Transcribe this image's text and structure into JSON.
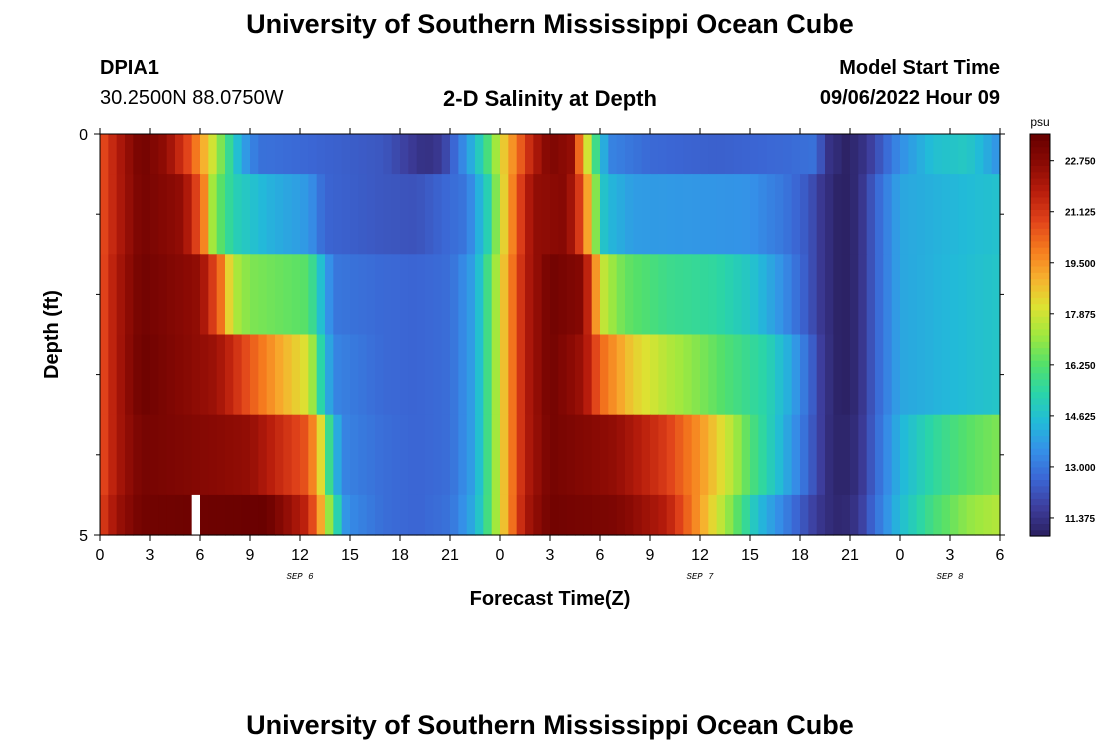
{
  "header": {
    "title": "University of Southern Mississippi Ocean Cube",
    "station": "DPIA1",
    "coords": "30.2500N  88.0750W",
    "plot_title": "2-D Salinity at Depth",
    "start_label": "Model Start Time",
    "start_value": "09/06/2022 Hour 09"
  },
  "footer": {
    "title": "University of Southern Mississippi Ocean Cube"
  },
  "chart_data": {
    "type": "heatmap",
    "title": "2-D Salinity at Depth",
    "xlabel": "Forecast Time(Z)",
    "ylabel": "Depth (ft)",
    "x_tick_labels": [
      "0",
      "3",
      "6",
      "9",
      "12",
      "15",
      "18",
      "21",
      "0",
      "3",
      "6",
      "9",
      "12",
      "15",
      "18",
      "21",
      "0",
      "3",
      "6"
    ],
    "x_tick_hours": [
      0,
      3,
      6,
      9,
      12,
      15,
      18,
      21,
      24,
      27,
      30,
      33,
      36,
      39,
      42,
      45,
      48,
      51,
      54
    ],
    "x_date_labels": [
      {
        "label": "SEP 6",
        "hour": 12
      },
      {
        "label": "SEP 7",
        "hour": 36
      },
      {
        "label": "SEP 8",
        "hour": 51
      }
    ],
    "xlim": [
      0,
      54
    ],
    "y_tick_labels": [
      "0",
      "5"
    ],
    "ylim": [
      0,
      5
    ],
    "y_minor_ticks": [
      1,
      2,
      3,
      4
    ],
    "colorbar": {
      "unit": "psu",
      "min": 10.8,
      "max": 23.6,
      "tick_labels": [
        "22.750",
        "21.125",
        "19.500",
        "17.875",
        "16.250",
        "14.625",
        "13.000",
        "11.375"
      ],
      "tick_values": [
        22.75,
        21.125,
        19.5,
        17.875,
        16.25,
        14.625,
        13.0,
        11.375
      ],
      "colors": [
        "#2a1f5e",
        "#3d3d9c",
        "#3b66d4",
        "#3590e8",
        "#22bbd8",
        "#2ad5a8",
        "#54e06a",
        "#a0e83e",
        "#dde232",
        "#f7b02e",
        "#f57a1e",
        "#e0421a",
        "#b81d0c",
        "#8a0a04",
        "#660000"
      ]
    },
    "depth_layers": [
      {
        "depth_range": [
          0,
          0.5
        ],
        "keyframes": [
          [
            0,
            20.5
          ],
          [
            1,
            21.8
          ],
          [
            2.5,
            23.3
          ],
          [
            4,
            22.5
          ],
          [
            5.5,
            20.5
          ],
          [
            6.5,
            18.5
          ],
          [
            7.5,
            16.2
          ],
          [
            8.5,
            14.0
          ],
          [
            9.5,
            12.9
          ],
          [
            13,
            12.6
          ],
          [
            17,
            12.3
          ],
          [
            19.5,
            11.3
          ],
          [
            20.5,
            11.6
          ],
          [
            21.5,
            13.0
          ],
          [
            22.5,
            14.5
          ],
          [
            23.5,
            16.5
          ],
          [
            24.2,
            18.5
          ],
          [
            25,
            20.0
          ],
          [
            26,
            21.8
          ],
          [
            27,
            23.0
          ],
          [
            28.3,
            22.5
          ],
          [
            29,
            19.0
          ],
          [
            29.7,
            16.0
          ],
          [
            30.5,
            13.3
          ],
          [
            33,
            12.7
          ],
          [
            37,
            12.5
          ],
          [
            41,
            12.7
          ],
          [
            43,
            12.9
          ],
          [
            43.5,
            11.5
          ],
          [
            44.8,
            10.9
          ],
          [
            45.5,
            11.2
          ],
          [
            46,
            11.5
          ],
          [
            47,
            12.5
          ],
          [
            48,
            13.5
          ],
          [
            50,
            14.6
          ],
          [
            52,
            14.9
          ],
          [
            53,
            14.3
          ],
          [
            54,
            13.5
          ]
        ]
      },
      {
        "depth_range": [
          0.5,
          1.5
        ],
        "keyframes": [
          [
            0,
            20.5
          ],
          [
            1,
            21.8
          ],
          [
            2.5,
            23.2
          ],
          [
            5,
            22.5
          ],
          [
            6.2,
            20.0
          ],
          [
            6.8,
            17.0
          ],
          [
            8,
            15.2
          ],
          [
            10,
            14.3
          ],
          [
            12.5,
            13.7
          ],
          [
            13.5,
            12.6
          ],
          [
            17,
            12.3
          ],
          [
            19,
            12.2
          ],
          [
            22,
            13.0
          ],
          [
            23.2,
            15.0
          ],
          [
            24.2,
            18.3
          ],
          [
            25,
            20.5
          ],
          [
            26,
            22.5
          ],
          [
            28,
            22.8
          ],
          [
            29,
            20.5
          ],
          [
            29.6,
            17.5
          ],
          [
            30.3,
            14.5
          ],
          [
            32,
            13.8
          ],
          [
            39,
            13.6
          ],
          [
            41,
            13.0
          ],
          [
            42.5,
            12.3
          ],
          [
            43.3,
            11.5
          ],
          [
            44.5,
            10.8
          ],
          [
            45.5,
            11.2
          ],
          [
            46.5,
            12.5
          ],
          [
            48,
            14.0
          ],
          [
            54,
            14.7
          ]
        ]
      },
      {
        "depth_range": [
          1.5,
          2.5
        ],
        "keyframes": [
          [
            0,
            20.5
          ],
          [
            1,
            22.0
          ],
          [
            2.5,
            23.3
          ],
          [
            6,
            22.5
          ],
          [
            7.3,
            20.0
          ],
          [
            8,
            17.5
          ],
          [
            9,
            16.8
          ],
          [
            12.5,
            16.3
          ],
          [
            13.3,
            14.5
          ],
          [
            14,
            13.0
          ],
          [
            17,
            12.7
          ],
          [
            19,
            12.6
          ],
          [
            21,
            12.8
          ],
          [
            22.5,
            14.0
          ],
          [
            23.5,
            16.5
          ],
          [
            24.5,
            19.5
          ],
          [
            25.5,
            21.8
          ],
          [
            27,
            23.3
          ],
          [
            29,
            22.8
          ],
          [
            29.6,
            20.0
          ],
          [
            30.3,
            17.5
          ],
          [
            31.5,
            16.5
          ],
          [
            34,
            15.8
          ],
          [
            37,
            15.5
          ],
          [
            39,
            14.8
          ],
          [
            41,
            13.5
          ],
          [
            42.5,
            12.3
          ],
          [
            43.3,
            11.5
          ],
          [
            44.5,
            10.8
          ],
          [
            45.5,
            11.2
          ],
          [
            46.5,
            12.5
          ],
          [
            48,
            14.0
          ],
          [
            54,
            14.8
          ]
        ]
      },
      {
        "depth_range": [
          2.5,
          3.5
        ],
        "keyframes": [
          [
            0,
            20.5
          ],
          [
            1,
            22.0
          ],
          [
            2.5,
            23.4
          ],
          [
            7,
            22.3
          ],
          [
            9,
            20.5
          ],
          [
            11,
            19.0
          ],
          [
            12.5,
            18.0
          ],
          [
            13.3,
            15.2
          ],
          [
            14,
            13.3
          ],
          [
            17,
            12.7
          ],
          [
            19,
            12.6
          ],
          [
            21,
            12.8
          ],
          [
            22.5,
            14.0
          ],
          [
            23.5,
            16.5
          ],
          [
            24.5,
            19.5
          ],
          [
            25.5,
            21.8
          ],
          [
            27,
            23.3
          ],
          [
            29,
            22.3
          ],
          [
            30,
            20.3
          ],
          [
            32,
            18.5
          ],
          [
            34,
            17.5
          ],
          [
            36,
            16.8
          ],
          [
            38,
            16.0
          ],
          [
            40,
            15.3
          ],
          [
            41.5,
            14.0
          ],
          [
            42.7,
            12.5
          ],
          [
            43.4,
            11.5
          ],
          [
            44.5,
            10.8
          ],
          [
            45.5,
            11.2
          ],
          [
            46.5,
            12.5
          ],
          [
            48,
            14.0
          ],
          [
            54,
            14.8
          ]
        ]
      },
      {
        "depth_range": [
          3.5,
          4.5
        ],
        "keyframes": [
          [
            0,
            20.5
          ],
          [
            1,
            22.0
          ],
          [
            2.5,
            23.2
          ],
          [
            9,
            22.5
          ],
          [
            11,
            21.3
          ],
          [
            12.5,
            20.5
          ],
          [
            13.2,
            18.5
          ],
          [
            13.8,
            15.5
          ],
          [
            14.5,
            13.3
          ],
          [
            17,
            12.8
          ],
          [
            19,
            12.6
          ],
          [
            21,
            12.8
          ],
          [
            22.5,
            14.0
          ],
          [
            23.5,
            16.5
          ],
          [
            24.5,
            19.5
          ],
          [
            25.5,
            21.8
          ],
          [
            27,
            23.2
          ],
          [
            31,
            22.5
          ],
          [
            34,
            21.0
          ],
          [
            36,
            19.5
          ],
          [
            37.5,
            18.0
          ],
          [
            39,
            16.2
          ],
          [
            40.5,
            14.8
          ],
          [
            42,
            13.2
          ],
          [
            43,
            12.0
          ],
          [
            43.6,
            11.3
          ],
          [
            44.5,
            10.9
          ],
          [
            45.5,
            11.3
          ],
          [
            46.5,
            12.6
          ],
          [
            48,
            14.3
          ],
          [
            50,
            15.5
          ],
          [
            52,
            16.3
          ],
          [
            54,
            16.8
          ]
        ]
      },
      {
        "depth_range": [
          4.5,
          5
        ],
        "keyframes": [
          [
            0,
            20.8
          ],
          [
            1,
            22.3
          ],
          [
            2.5,
            23.3
          ],
          [
            10,
            23.5
          ],
          [
            12.5,
            21.5
          ],
          [
            13.3,
            19.0
          ],
          [
            14,
            16.0
          ],
          [
            14.8,
            13.5
          ],
          [
            17,
            12.8
          ],
          [
            19,
            12.6
          ],
          [
            21,
            12.9
          ],
          [
            22.5,
            14.2
          ],
          [
            23.5,
            16.5
          ],
          [
            24.5,
            19.5
          ],
          [
            25.5,
            22.0
          ],
          [
            27,
            23.3
          ],
          [
            31,
            23.0
          ],
          [
            34,
            21.8
          ],
          [
            35.5,
            20.0
          ],
          [
            37,
            18.0
          ],
          [
            38.5,
            16.0
          ],
          [
            39.5,
            14.5
          ],
          [
            41,
            13.3
          ],
          [
            42.5,
            12.0
          ],
          [
            43.5,
            11.3
          ],
          [
            44.5,
            11.0
          ],
          [
            45.5,
            11.5
          ],
          [
            46.5,
            12.8
          ],
          [
            48,
            14.5
          ],
          [
            50,
            16.0
          ],
          [
            52,
            17.0
          ],
          [
            54,
            17.5
          ]
        ]
      }
    ],
    "missing_column_hour": 5.5
  }
}
